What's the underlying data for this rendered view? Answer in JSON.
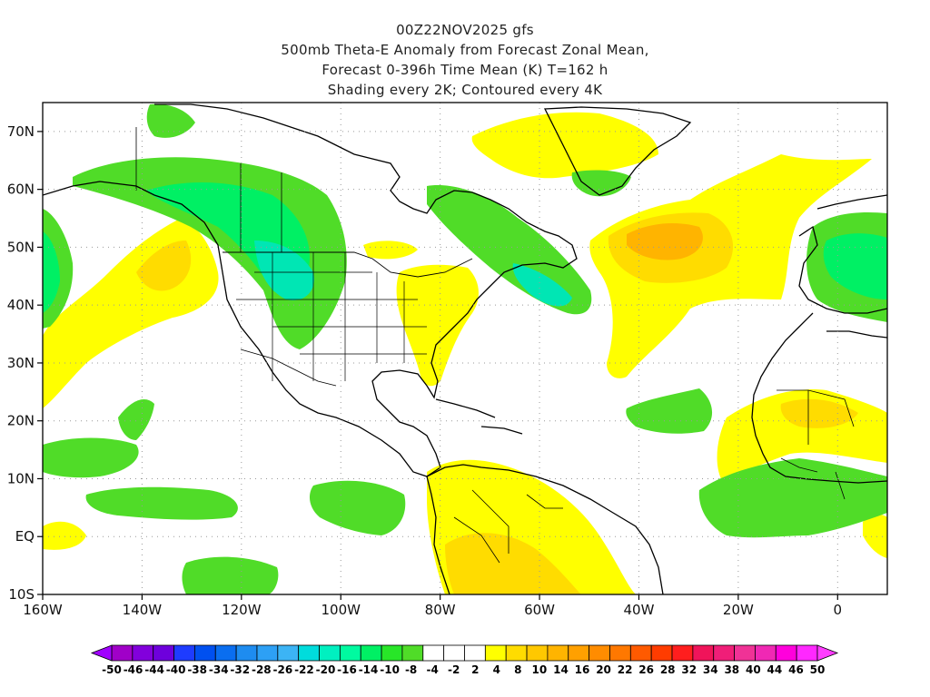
{
  "header": {
    "title_line1": "00Z22NOV2025 gfs",
    "title_line2": "500mb Theta-E Anomaly from Forecast Zonal Mean,",
    "title_line3": "Forecast 0-396h Time Mean (K) T=162 h",
    "title_line4": "Shading every 2K; Contoured every 4K"
  },
  "map": {
    "extent": {
      "lon_min": -160,
      "lon_max": 10,
      "lat_min": -10,
      "lat_max": 75
    },
    "lat_ticks": [
      {
        "value": 70,
        "label": "70N"
      },
      {
        "value": 60,
        "label": "60N"
      },
      {
        "value": 50,
        "label": "50N"
      },
      {
        "value": 40,
        "label": "40N"
      },
      {
        "value": 30,
        "label": "30N"
      },
      {
        "value": 20,
        "label": "20N"
      },
      {
        "value": 10,
        "label": "10N"
      },
      {
        "value": 0,
        "label": "EQ"
      },
      {
        "value": -10,
        "label": "10S"
      }
    ],
    "lon_ticks": [
      {
        "value": -160,
        "label": "160W"
      },
      {
        "value": -140,
        "label": "140W"
      },
      {
        "value": -120,
        "label": "120W"
      },
      {
        "value": -100,
        "label": "100W"
      },
      {
        "value": -80,
        "label": "80W"
      },
      {
        "value": -60,
        "label": "60W"
      },
      {
        "value": -40,
        "label": "40W"
      },
      {
        "value": -20,
        "label": "20W"
      },
      {
        "value": 0,
        "label": "0"
      }
    ],
    "grid": true
  },
  "colorbar": {
    "labels": [
      "-50",
      "-46",
      "-44",
      "-40",
      "-38",
      "-34",
      "-32",
      "-28",
      "-26",
      "-22",
      "-20",
      "-16",
      "-14",
      "-10",
      "-8",
      "-4",
      "-2",
      "2",
      "4",
      "8",
      "10",
      "14",
      "16",
      "20",
      "22",
      "26",
      "28",
      "32",
      "34",
      "38",
      "40",
      "44",
      "46",
      "50"
    ],
    "colors": [
      "#a000c8",
      "#8200dc",
      "#6e00dc",
      "#1e3cff",
      "#0050f0",
      "#0a6ef0",
      "#1e8cf0",
      "#2da0f5",
      "#3cb4f5",
      "#00dcdc",
      "#00f0c0",
      "#00faa0",
      "#00f064",
      "#28e628",
      "#50dc28",
      "#ffffff",
      "#ffffff",
      "#ffffff",
      "#ffff00",
      "#ffdc00",
      "#ffc800",
      "#ffb400",
      "#ffa000",
      "#ff8c00",
      "#ff7800",
      "#ff5a00",
      "#ff3c00",
      "#ff1e1e",
      "#f0145a",
      "#f01e78",
      "#f03296",
      "#f028b4",
      "#ff00dc",
      "#ff28ff"
    ],
    "left_arrow_color": "#a000ff",
    "right_arrow_color": "#ff3cff"
  },
  "anomaly_colors": {
    "negative_light": "#50dc28",
    "negative_mid": "#00f064",
    "negative_strong": "#00e6b4",
    "positive_light": "#ffff00",
    "positive_mid": "#ffdc00",
    "positive_strong": "#ffb400",
    "positive_max": "#ff9600"
  }
}
